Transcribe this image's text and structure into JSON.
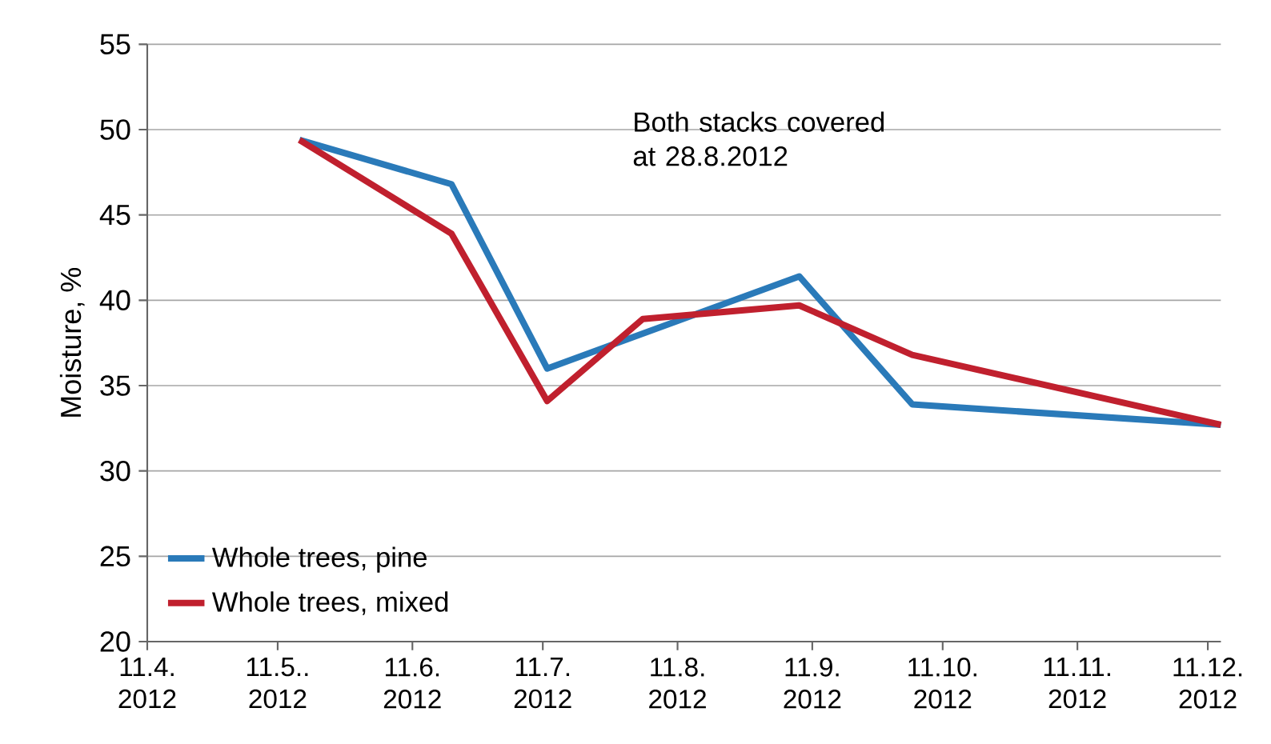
{
  "chart_data": {
    "type": "line",
    "ylabel": "Moisture, %",
    "annotations": [
      "Both stacks covered at 28.8.2012"
    ],
    "series": [
      {
        "name": "Whole trees, pine",
        "color": "#2a7ab9",
        "x": [
          "2012-05-16",
          "2012-06-20",
          "2012-07-12",
          "2012-09-08",
          "2012-10-04",
          "2012-12-14"
        ],
        "values": [
          49.4,
          46.8,
          36.0,
          41.4,
          33.9,
          32.7
        ]
      },
      {
        "name": "Whole trees, mixed",
        "color": "#c0202e",
        "x": [
          "2012-05-16",
          "2012-06-20",
          "2012-07-12",
          "2012-08-03",
          "2012-09-08",
          "2012-10-04",
          "2012-12-14"
        ],
        "values": [
          49.4,
          43.9,
          34.1,
          38.9,
          39.7,
          36.8,
          32.7
        ]
      }
    ],
    "xlim": [
      "2012-04-11",
      "2012-12-14"
    ],
    "xticks": [
      {
        "value": "2012-04-11",
        "label": "11.4. 2012"
      },
      {
        "value": "2012-05-11",
        "label": "11.5.. 2012"
      },
      {
        "value": "2012-06-11",
        "label": "11.6. 2012"
      },
      {
        "value": "2012-07-11",
        "label": "11.7. 2012"
      },
      {
        "value": "2012-08-11",
        "label": "11.8. 2012"
      },
      {
        "value": "2012-09-11",
        "label": "11.9. 2012"
      },
      {
        "value": "2012-10-11",
        "label": "11.10. 2012"
      },
      {
        "value": "2012-11-11",
        "label": "11.11. 2012"
      },
      {
        "value": "2012-12-11",
        "label": "11.12. 2012"
      }
    ],
    "ylim": [
      20,
      55
    ],
    "yticks": [
      20,
      25,
      30,
      35,
      40,
      45,
      50,
      55
    ],
    "grid": "y",
    "legend": "bottom left",
    "line_style": "solid",
    "marker": "none"
  }
}
